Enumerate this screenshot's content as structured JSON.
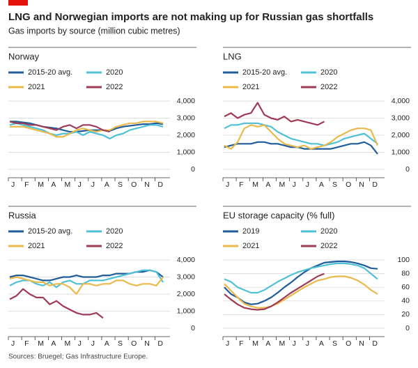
{
  "title": "LNG and Norwegian imports are not making up for Russian gas shortfalls",
  "subtitle": "Gas imports by source (million cubic metres)",
  "source": "Sources: Bruegel; Gas Infrastructure Europe.",
  "chart_data": [
    {
      "type": "line",
      "title": "Norway",
      "categories": [
        "J",
        null,
        "F",
        null,
        "M",
        null,
        "A",
        null,
        "M",
        null,
        "J",
        null,
        "J",
        null,
        "A",
        null,
        "S",
        null,
        "O",
        null,
        "N",
        null,
        "D",
        null
      ],
      "ylim": [
        0,
        4000
      ],
      "yticks": [
        0,
        {
          "value": 1000,
          "label": "1,000"
        },
        {
          "value": 2000,
          "label": "2,000"
        },
        {
          "value": 3000,
          "label": "3,000"
        },
        {
          "value": 4000,
          "label": "4,000"
        }
      ],
      "grid": true,
      "series": [
        {
          "name": "2015-20 avg.",
          "color": "#1f5c99",
          "values": [
            2800,
            2800,
            2750,
            2700,
            2600,
            2500,
            2450,
            2400,
            2300,
            2200,
            2200,
            2250,
            2300,
            2300,
            2300,
            2250,
            2400,
            2500,
            2550,
            2600,
            2650,
            2650,
            2700,
            2650
          ]
        },
        {
          "name": "2020",
          "color": "#4ec1d6",
          "values": [
            2600,
            2700,
            2600,
            2500,
            2400,
            2300,
            2100,
            2000,
            2100,
            2100,
            2200,
            2000,
            2200,
            2100,
            2000,
            1800,
            2000,
            2100,
            2300,
            2400,
            2500,
            2600,
            2600,
            2500
          ]
        },
        {
          "name": "2021",
          "color": "#e9b94a",
          "values": [
            2500,
            2500,
            2500,
            2400,
            2300,
            2200,
            2100,
            1900,
            1900,
            2100,
            2300,
            2400,
            2300,
            2200,
            2300,
            2300,
            2500,
            2600,
            2700,
            2700,
            2800,
            2800,
            2800,
            2700
          ]
        },
        {
          "name": "2022",
          "color": "#9e3a56",
          "values": [
            2800,
            2700,
            2700,
            2600,
            2600,
            2500,
            2400,
            2300,
            2500,
            2600,
            2400,
            2600,
            2600,
            2500,
            2300,
            2200,
            null,
            null,
            null,
            null,
            null,
            null,
            null,
            null
          ]
        }
      ]
    },
    {
      "type": "line",
      "title": "LNG",
      "categories": [
        "J",
        null,
        "F",
        null,
        "M",
        null,
        "A",
        null,
        "M",
        null,
        "J",
        null,
        "J",
        null,
        "A",
        null,
        "S",
        null,
        "O",
        null,
        "N",
        null,
        "D",
        null
      ],
      "ylim": [
        0,
        4000
      ],
      "yticks": [
        0,
        {
          "value": 1000,
          "label": "1,000"
        },
        {
          "value": 2000,
          "label": "2,000"
        },
        {
          "value": 3000,
          "label": "3,000"
        },
        {
          "value": 4000,
          "label": "4,000"
        }
      ],
      "grid": true,
      "series": [
        {
          "name": "2015-20 avg.",
          "color": "#1f5c99",
          "values": [
            1300,
            1400,
            1500,
            1500,
            1500,
            1600,
            1600,
            1500,
            1500,
            1400,
            1300,
            1300,
            1200,
            1200,
            1200,
            1200,
            1200,
            1300,
            1400,
            1500,
            1500,
            1600,
            1400,
            900
          ]
        },
        {
          "name": "2020",
          "color": "#4ec1d6",
          "values": [
            2400,
            2600,
            2600,
            2700,
            2700,
            2700,
            2600,
            2500,
            2200,
            2000,
            1800,
            1700,
            1600,
            1500,
            1500,
            1400,
            1500,
            1600,
            1800,
            1900,
            2000,
            2100,
            1800,
            1500
          ]
        },
        {
          "name": "2021",
          "color": "#e9b94a",
          "values": [
            1400,
            1200,
            1600,
            2400,
            2600,
            2500,
            2600,
            2200,
            1800,
            1500,
            1400,
            1300,
            1400,
            1200,
            1300,
            1400,
            1600,
            1900,
            2100,
            2300,
            2400,
            2400,
            2300,
            1400
          ]
        },
        {
          "name": "2022",
          "color": "#9e3a56",
          "values": [
            3100,
            3300,
            3000,
            3200,
            3300,
            3900,
            3200,
            3000,
            2900,
            3100,
            2800,
            2900,
            2800,
            2700,
            2600,
            2800,
            null,
            null,
            null,
            null,
            null,
            null,
            null,
            null
          ]
        }
      ]
    },
    {
      "type": "line",
      "title": "Russia",
      "categories": [
        "J",
        null,
        "F",
        null,
        "M",
        null,
        "A",
        null,
        "M",
        null,
        "J",
        null,
        "J",
        null,
        "A",
        null,
        "S",
        null,
        "O",
        null,
        "N",
        null,
        "D",
        null
      ],
      "ylim": [
        0,
        4000
      ],
      "yticks": [
        0,
        {
          "value": 1000,
          "label": "1,000"
        },
        {
          "value": 2000,
          "label": "2,000"
        },
        {
          "value": 3000,
          "label": "3,000"
        },
        {
          "value": 4000,
          "label": "4,000"
        }
      ],
      "grid": true,
      "series": [
        {
          "name": "2015-20 avg.",
          "color": "#1f5c99",
          "values": [
            3000,
            3100,
            3100,
            3000,
            2900,
            2800,
            2800,
            2900,
            3000,
            3000,
            3100,
            3000,
            3000,
            3000,
            3100,
            3100,
            3200,
            3200,
            3200,
            3300,
            3300,
            3400,
            3300,
            3000
          ]
        },
        {
          "name": "2020",
          "color": "#4ec1d6",
          "values": [
            2500,
            2700,
            2800,
            2800,
            2600,
            2500,
            2700,
            2400,
            2700,
            2800,
            2600,
            2600,
            2800,
            2800,
            2800,
            2900,
            3000,
            3100,
            3200,
            3300,
            3400,
            3400,
            3300,
            2700
          ]
        },
        {
          "name": "2021",
          "color": "#e9b94a",
          "values": [
            2900,
            3000,
            2900,
            2800,
            2700,
            2700,
            2500,
            2600,
            2600,
            2400,
            2000,
            2600,
            2600,
            2500,
            2600,
            2600,
            2800,
            2800,
            2600,
            2500,
            2600,
            2600,
            2500,
            3000
          ]
        },
        {
          "name": "2022",
          "color": "#9e3a56",
          "values": [
            1700,
            1900,
            2300,
            2000,
            1800,
            1800,
            1400,
            1600,
            1300,
            1100,
            900,
            800,
            800,
            900,
            600,
            null,
            null,
            null,
            null,
            null,
            null,
            null,
            null,
            null
          ]
        }
      ]
    },
    {
      "type": "line",
      "title": "EU storage capacity (% full)",
      "categories": [
        "J",
        null,
        "F",
        null,
        "M",
        null,
        "A",
        null,
        "M",
        null,
        "J",
        null,
        "J",
        null,
        "A",
        null,
        "S",
        null,
        "O",
        null,
        "N",
        null,
        "D",
        null
      ],
      "ylim": [
        0,
        100
      ],
      "yticks": [
        0,
        20,
        40,
        60,
        80,
        100
      ],
      "grid": true,
      "series": [
        {
          "name": "2019",
          "color": "#1f5c99",
          "values": [
            60,
            50,
            45,
            38,
            35,
            36,
            40,
            45,
            52,
            60,
            67,
            75,
            82,
            88,
            92,
            96,
            97,
            98,
            98,
            97,
            95,
            92,
            88,
            87
          ]
        },
        {
          "name": "2020",
          "color": "#4ec1d6",
          "values": [
            72,
            68,
            60,
            56,
            52,
            52,
            56,
            62,
            68,
            73,
            78,
            82,
            85,
            88,
            90,
            92,
            94,
            95,
            95,
            94,
            92,
            88,
            80,
            72
          ]
        },
        {
          "name": "2021",
          "color": "#e9b94a",
          "values": [
            65,
            55,
            45,
            36,
            32,
            30,
            30,
            32,
            36,
            42,
            48,
            54,
            60,
            65,
            70,
            72,
            75,
            76,
            76,
            74,
            70,
            64,
            56,
            50
          ]
        },
        {
          "name": "2022",
          "color": "#9e3a56",
          "values": [
            50,
            42,
            35,
            30,
            28,
            27,
            28,
            32,
            38,
            45,
            52,
            58,
            64,
            70,
            76,
            80,
            null,
            null,
            null,
            null,
            null,
            null,
            null,
            null
          ]
        }
      ]
    }
  ]
}
